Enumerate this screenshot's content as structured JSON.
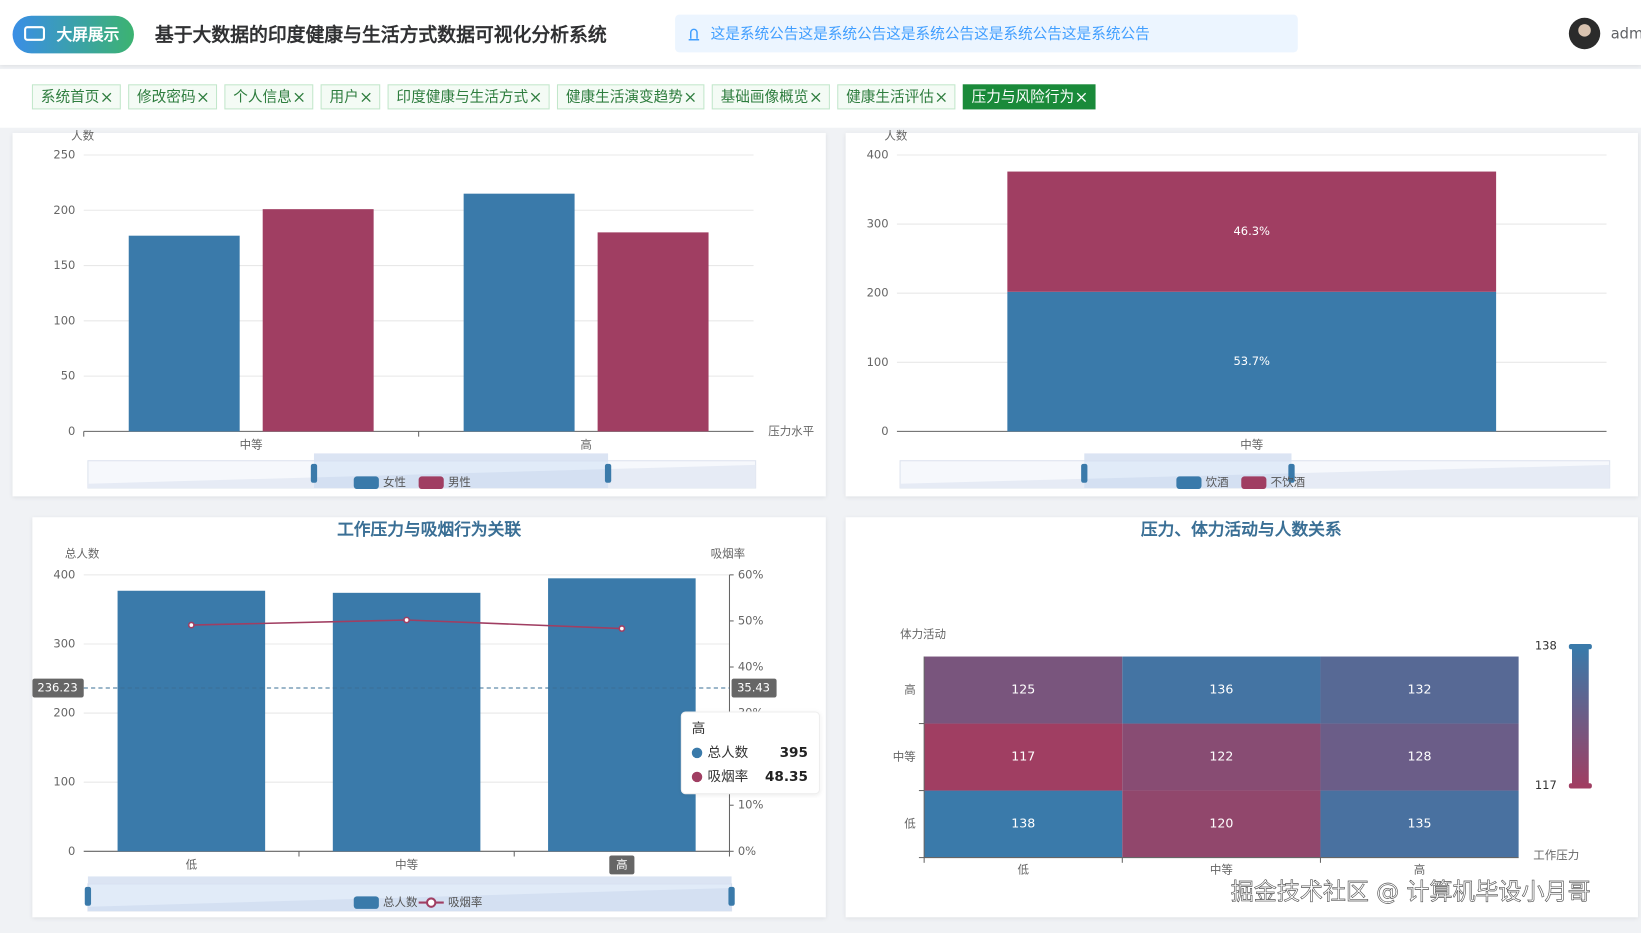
{
  "header": {
    "logo": "大屏展示",
    "title": "基于大数据的印度健康与生活方式数据可视化分析系统",
    "notice": "这是系统公告这是系统公告这是系统公告这是系统公告这是系统公告",
    "user": "adm"
  },
  "tabs": [
    "系统首页",
    "修改密码",
    "个人信息",
    "用户",
    "印度健康与生活方式",
    "健康生活演变趋势",
    "基础画像概览",
    "健康生活评估",
    "压力与风险行为"
  ],
  "active_tab": 8,
  "chart_data": [
    {
      "type": "bar",
      "y_label": "人数",
      "x_label": "压力水平",
      "categories": [
        "中等",
        "高"
      ],
      "series": [
        {
          "name": "女性",
          "color": "#3a7aaa",
          "values": [
            177,
            215
          ]
        },
        {
          "name": "男性",
          "color": "#a03e62",
          "values": [
            201,
            180
          ]
        }
      ],
      "ylim": [
        0,
        250
      ],
      "yticks": [
        0,
        50,
        100,
        150,
        200,
        250
      ],
      "grid": true,
      "legend": "bottom"
    },
    {
      "type": "stacked_bar",
      "y_label": "人数",
      "categories": [
        "中等"
      ],
      "series": [
        {
          "name": "饮酒",
          "color": "#3a7aaa",
          "values": [
            202
          ],
          "share_labels": [
            "53.7%"
          ]
        },
        {
          "name": "不饮酒",
          "color": "#a03e62",
          "values": [
            174
          ],
          "share_labels": [
            "46.3%"
          ]
        }
      ],
      "ylim": [
        0,
        400
      ],
      "yticks": [
        0,
        100,
        200,
        300,
        400
      ],
      "grid": true,
      "legend": "bottom"
    },
    {
      "type": "bar_line",
      "title": "工作压力与吸烟行为关联",
      "y_label": "总人数",
      "y2_label": "吸烟率",
      "categories": [
        "低",
        "中等",
        "高"
      ],
      "series": [
        {
          "name": "总人数",
          "type": "bar",
          "color": "#3a7aaa",
          "values": [
            377,
            374,
            395
          ]
        },
        {
          "name": "吸烟率",
          "type": "line",
          "axis": "y2",
          "color": "#a03e62",
          "values": [
            49.1,
            50.2,
            48.35
          ]
        }
      ],
      "ylim": [
        0,
        400
      ],
      "yticks": [
        0,
        100,
        200,
        300,
        400
      ],
      "y2lim": [
        0,
        60
      ],
      "y2ticks": [
        {
          "value": 0,
          "label": "0%"
        },
        {
          "value": 10,
          "label": "10%"
        },
        {
          "value": 20,
          "label": "20%"
        },
        {
          "value": 30,
          "label": "30%"
        },
        {
          "value": 40,
          "label": "40%"
        },
        {
          "value": 50,
          "label": "50%"
        },
        {
          "value": 60,
          "label": "60%"
        }
      ],
      "grid": true,
      "legend": "bottom",
      "pointer": {
        "y": 236.23,
        "y2": 35.43
      },
      "tooltip_category": 2
    },
    {
      "type": "heatmap",
      "title": "压力、体力活动与人数关系",
      "x_label": "工作压力",
      "y_label": "体力活动",
      "x_categories": [
        "低",
        "中等",
        "高"
      ],
      "y_categories": [
        "低",
        "中等",
        "高"
      ],
      "values": [
        [
          138,
          120,
          135
        ],
        [
          117,
          122,
          128
        ],
        [
          125,
          136,
          132
        ]
      ],
      "visual_range": [
        117,
        138
      ],
      "color_min": "#a03e62",
      "color_max": "#3a7aaa"
    }
  ],
  "watermark": "掘金技术社区 @ 计算机毕设小月哥"
}
